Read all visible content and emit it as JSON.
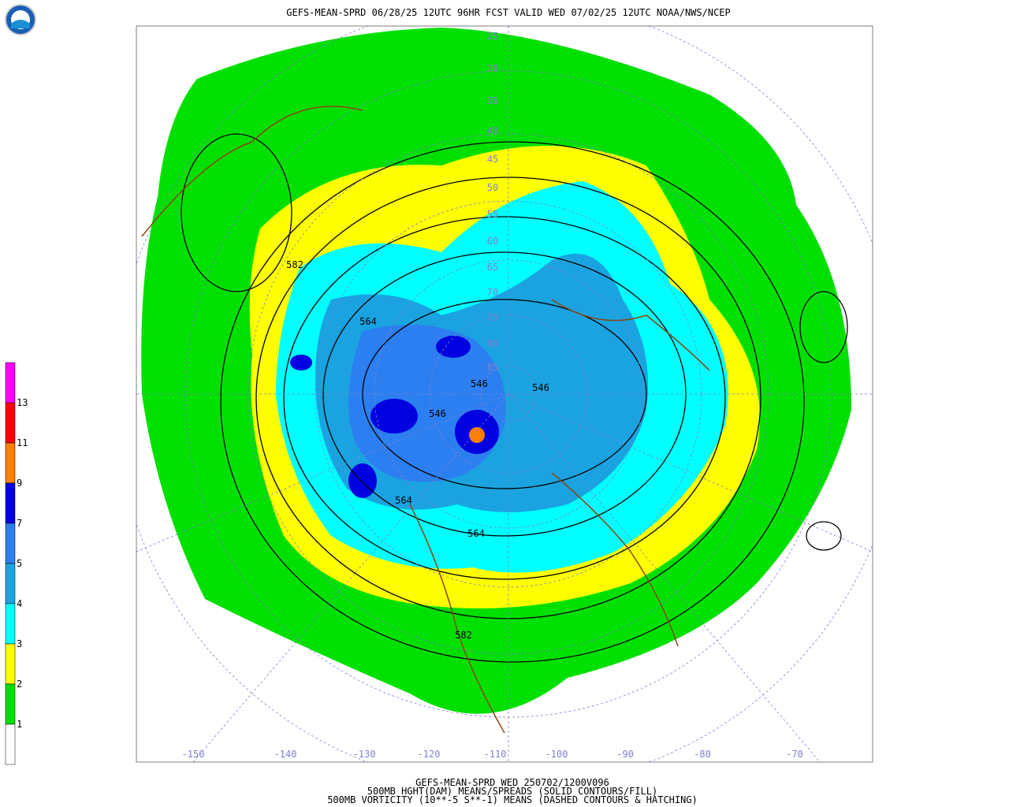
{
  "header": {
    "title": "GEFS-MEAN-SPRD 06/28/25 12UTC 96HR FCST VALID WED 07/02/25 12UTC NOAA/NWS/NCEP"
  },
  "legend": {
    "top_color": "#ff00ff",
    "levels": [
      {
        "label": "13",
        "color": "#ff0000"
      },
      {
        "label": "11",
        "color": "#ff7f00"
      },
      {
        "label": "9",
        "color": "#0000e0"
      },
      {
        "label": "7",
        "color": "#2c7ff0"
      },
      {
        "label": "5",
        "color": "#1aa3e0"
      },
      {
        "label": "4",
        "color": "#00ffff"
      },
      {
        "label": "3",
        "color": "#ffff00"
      },
      {
        "label": "2",
        "color": "#00e000"
      },
      {
        "label": "1",
        "color": "#ffffff"
      }
    ]
  },
  "map": {
    "latitude_labels": [
      "85",
      "80",
      "75",
      "70",
      "65",
      "60",
      "55",
      "50",
      "45",
      "40",
      "35",
      "30",
      "25"
    ],
    "longitude_labels": [
      "-150",
      "-140",
      "-130",
      "-120",
      "-110",
      "-100",
      "-90",
      "-80",
      "-70"
    ],
    "contour_labels": [
      "582",
      "564",
      "546",
      "546",
      "546",
      "564",
      "564",
      "582"
    ]
  },
  "footer": {
    "lines": [
      "GEFS-MEAN-SPRD WED 250702/1200V096",
      "500MB HGHT(DAM) MEANS/SPREADS (SOLID CONTOURS/FILL)",
      "500MB VORTICITY (10**-5 S**-1) MEANS (DASHED CONTOURS & HATCHING)"
    ]
  }
}
